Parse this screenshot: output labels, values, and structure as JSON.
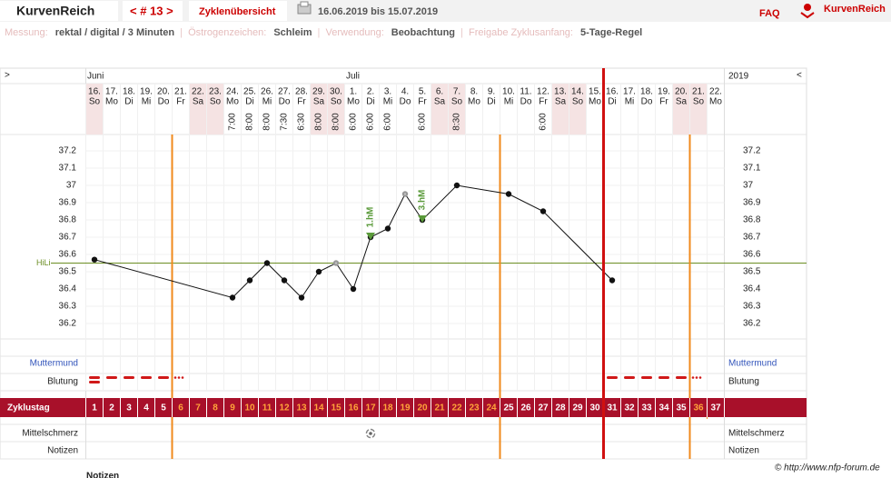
{
  "header": {
    "brand": "KurvenReich",
    "cycle_nav": "< # 13 >",
    "overview_button": "Zyklenübersicht",
    "date_range": "16.06.2019 bis 15.07.2019",
    "faq": "FAQ",
    "logo_text": "KurvenReich"
  },
  "settings": [
    {
      "label": "Messung:",
      "value": "rektal / digital / 3 Minuten"
    },
    {
      "label": "Östrogenzeichen:",
      "value": "Schleim"
    },
    {
      "label": "Verwendung:",
      "value": "Beobachtung"
    },
    {
      "label": "Freigabe Zyklusanfang:",
      "value": "5-Tage-Regel"
    }
  ],
  "chart": {
    "nav_prev": ">",
    "nav_next": "<",
    "year": "2019",
    "months": [
      {
        "label": "Juni",
        "day": 1
      },
      {
        "label": "Juli",
        "day": 16
      }
    ],
    "dates": [
      "16.",
      "17.",
      "18.",
      "19.",
      "20.",
      "21.",
      "22.",
      "23.",
      "24.",
      "25.",
      "26.",
      "27.",
      "28.",
      "29.",
      "30.",
      "1.",
      "2.",
      "3.",
      "4.",
      "5.",
      "6.",
      "7.",
      "8.",
      "9.",
      "10.",
      "11.",
      "12.",
      "13.",
      "14.",
      "15.",
      "16.",
      "17.",
      "18.",
      "19.",
      "20.",
      "21.",
      "22."
    ],
    "weekdays": [
      "So",
      "Mo",
      "Di",
      "Mi",
      "Do",
      "Fr",
      "Sa",
      "So",
      "Mo",
      "Di",
      "Mi",
      "Do",
      "Fr",
      "Sa",
      "So",
      "Mo",
      "Di",
      "Mi",
      "Do",
      "Fr",
      "Sa",
      "So",
      "Mo",
      "Di",
      "Mi",
      "Do",
      "Fr",
      "Sa",
      "So",
      "Mo",
      "Di",
      "Mi",
      "Do",
      "Fr",
      "Sa",
      "So",
      "Mo"
    ],
    "times": [
      null,
      null,
      null,
      null,
      null,
      null,
      null,
      null,
      "7:00",
      "8:00",
      "8:00",
      "7:30",
      "6:30",
      "8:00",
      "8:00",
      "6:00",
      "6:00",
      "6:00",
      null,
      "6:00",
      null,
      "8:30",
      null,
      null,
      null,
      null,
      "6:00",
      null,
      null,
      null,
      null,
      null,
      null,
      null,
      null,
      null,
      null
    ],
    "ylim": [
      36.1,
      37.3
    ],
    "yticks": [
      36.2,
      36.3,
      36.4,
      36.5,
      36.6,
      36.7,
      36.8,
      36.9,
      37,
      37.1,
      37.2
    ],
    "temperatures": {
      "days": [
        1,
        9,
        10,
        11,
        12,
        13,
        14,
        15,
        16,
        17,
        18,
        19,
        20,
        22,
        25,
        27,
        31
      ],
      "values": [
        36.57,
        36.35,
        36.45,
        36.55,
        36.45,
        36.35,
        36.5,
        36.55,
        36.4,
        36.7,
        36.75,
        36.95,
        36.8,
        37.0,
        36.95,
        36.85,
        36.45
      ],
      "excluded_days": [
        15,
        19
      ]
    },
    "coverline": {
      "label": "HiLi",
      "value": 36.55
    },
    "markers": [
      {
        "label": "1.hM",
        "day": 17
      },
      {
        "label": "3.hM",
        "day": 20
      }
    ],
    "orange_lines": [
      5.5,
      24.5,
      35.5
    ],
    "red_line": 30.5,
    "rows": {
      "cervix": "Muttermund",
      "bleeding": "Blutung",
      "cycle_day": "Zyklustag",
      "mittelschmerz": "Mittelschmerz",
      "notes": "Notizen"
    },
    "cycle_days": [
      1,
      2,
      3,
      4,
      5,
      6,
      7,
      8,
      9,
      10,
      11,
      12,
      13,
      14,
      15,
      16,
      17,
      18,
      19,
      20,
      21,
      22,
      23,
      24,
      25,
      26,
      27,
      28,
      29,
      30,
      31,
      32,
      33,
      34,
      35,
      36,
      37
    ],
    "fertile_ranges": [
      [
        6,
        24
      ],
      [
        36,
        36
      ]
    ],
    "bleeding_days": [
      1,
      2,
      3,
      4,
      5,
      31,
      32,
      33,
      34,
      35
    ],
    "spotting_days": [
      6,
      36
    ],
    "mittelschmerz_days": [
      17
    ]
  },
  "footer": {
    "copyright": "© http://www.nfp-forum.de",
    "notes_heading": "Notizen"
  }
}
